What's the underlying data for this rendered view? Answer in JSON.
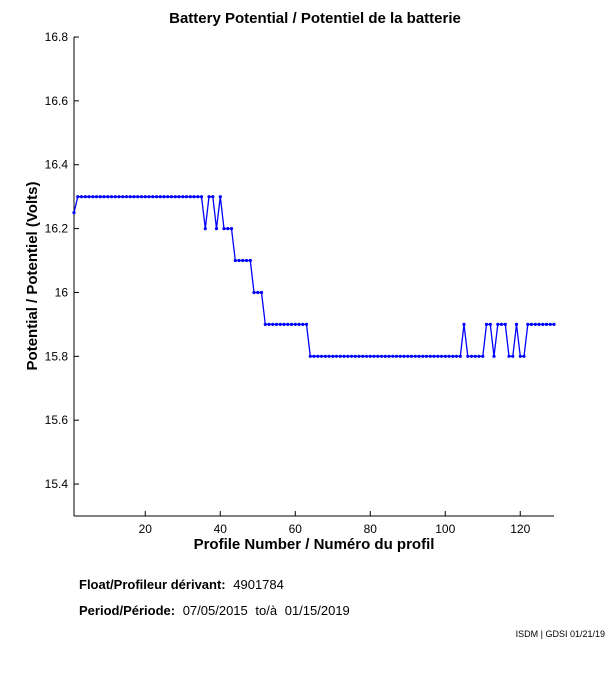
{
  "chart_data": {
    "type": "line",
    "title": "Battery Potential / Potentiel de la batterie",
    "xlabel": "Profile Number / Numéro du profil",
    "ylabel": "Potential / Potentiel (Volts)",
    "xlim": [
      1,
      129
    ],
    "ylim": [
      15.3,
      16.8
    ],
    "xticks": [
      20,
      40,
      60,
      80,
      100,
      120
    ],
    "yticks": [
      15.4,
      15.6,
      15.8,
      16,
      16.2,
      16.4,
      16.6,
      16.8
    ],
    "ytick_labels": [
      "15.4",
      "15.6",
      "15.8",
      "16",
      "16.2",
      "16.4",
      "16.6",
      "16.8"
    ],
    "color": "#0000ff",
    "series": [
      {
        "name": "Battery Potential",
        "x": [
          1,
          2,
          3,
          4,
          5,
          6,
          7,
          8,
          9,
          10,
          11,
          12,
          13,
          14,
          15,
          16,
          17,
          18,
          19,
          20,
          21,
          22,
          23,
          24,
          25,
          26,
          27,
          28,
          29,
          30,
          31,
          32,
          33,
          34,
          35,
          36,
          37,
          38,
          39,
          40,
          41,
          42,
          43,
          44,
          45,
          46,
          47,
          48,
          49,
          50,
          51,
          52,
          53,
          54,
          55,
          56,
          57,
          58,
          59,
          60,
          61,
          62,
          63,
          64,
          65,
          66,
          67,
          68,
          69,
          70,
          71,
          72,
          73,
          74,
          75,
          76,
          77,
          78,
          79,
          80,
          81,
          82,
          83,
          84,
          85,
          86,
          87,
          88,
          89,
          90,
          91,
          92,
          93,
          94,
          95,
          96,
          97,
          98,
          99,
          100,
          101,
          102,
          103,
          104,
          105,
          106,
          107,
          108,
          109,
          110,
          111,
          112,
          113,
          114,
          115,
          116,
          117,
          118,
          119,
          120,
          121,
          122,
          123,
          124,
          125,
          126,
          127,
          128,
          129
        ],
        "values": [
          16.25,
          16.3,
          16.3,
          16.3,
          16.3,
          16.3,
          16.3,
          16.3,
          16.3,
          16.3,
          16.3,
          16.3,
          16.3,
          16.3,
          16.3,
          16.3,
          16.3,
          16.3,
          16.3,
          16.3,
          16.3,
          16.3,
          16.3,
          16.3,
          16.3,
          16.3,
          16.3,
          16.3,
          16.3,
          16.3,
          16.3,
          16.3,
          16.3,
          16.3,
          16.3,
          16.2,
          16.3,
          16.3,
          16.2,
          16.3,
          16.2,
          16.2,
          16.2,
          16.1,
          16.1,
          16.1,
          16.1,
          16.1,
          16.0,
          16.0,
          16.0,
          15.9,
          15.9,
          15.9,
          15.9,
          15.9,
          15.9,
          15.9,
          15.9,
          15.9,
          15.9,
          15.9,
          15.9,
          15.8,
          15.8,
          15.8,
          15.8,
          15.8,
          15.8,
          15.8,
          15.8,
          15.8,
          15.8,
          15.8,
          15.8,
          15.8,
          15.8,
          15.8,
          15.8,
          15.8,
          15.8,
          15.8,
          15.8,
          15.8,
          15.8,
          15.8,
          15.8,
          15.8,
          15.8,
          15.8,
          15.8,
          15.8,
          15.8,
          15.8,
          15.8,
          15.8,
          15.8,
          15.8,
          15.8,
          15.8,
          15.8,
          15.8,
          15.8,
          15.8,
          15.9,
          15.8,
          15.8,
          15.8,
          15.8,
          15.8,
          15.9,
          15.9,
          15.8,
          15.9,
          15.9,
          15.9,
          15.8,
          15.8,
          15.9,
          15.8,
          15.8,
          15.9,
          15.9,
          15.9,
          15.9,
          15.9,
          15.9,
          15.9,
          15.9
        ]
      }
    ]
  },
  "info": {
    "float_label": "Float/Profileur dérivant:",
    "float_value": "4901784",
    "period_label": "Period/Période:",
    "period_start": "07/05/2015",
    "period_sep": "to/à",
    "period_end": "01/15/2019",
    "credit": "ISDM | GDSI 01/21/19"
  }
}
